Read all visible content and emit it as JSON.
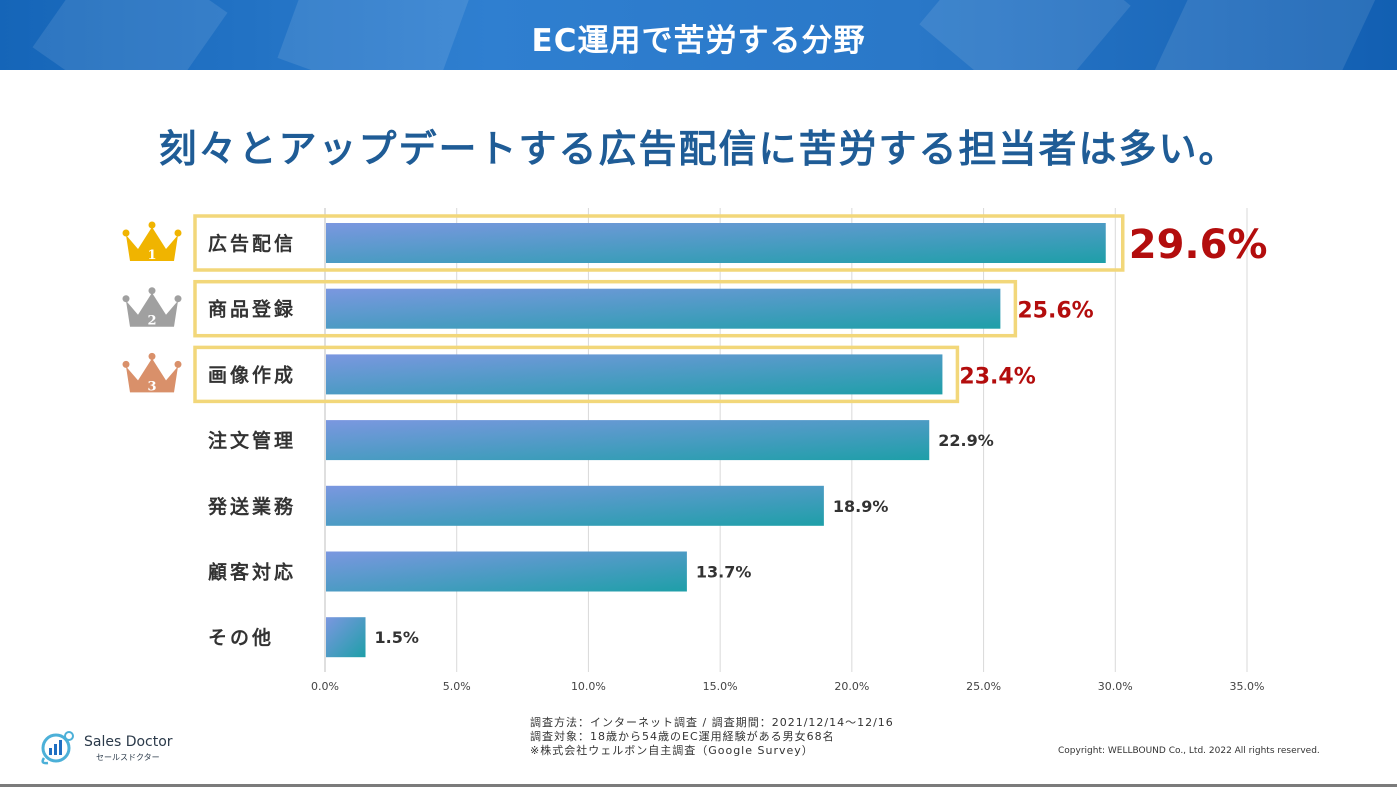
{
  "banner": {
    "title": "EC運用で苦労する分野"
  },
  "subtitle": "刻々とアップデートする広告配信に苦労する担当者は多い。",
  "colors": {
    "banner": "#1f6fc2",
    "subtitle": "#1f5c96",
    "bar_start": "#7b97e0",
    "bar_end": "#1e9fa8",
    "highlight_box": "#f2d77a",
    "top_value": "#b30d0d",
    "gold_crown": "#f0b400",
    "silver_crown": "#a0a0a0",
    "bronze_crown": "#d9906a"
  },
  "chart_data": {
    "type": "bar",
    "orientation": "horizontal",
    "categories": [
      "広告配信",
      "商品登録",
      "画像作成",
      "注文管理",
      "発送業務",
      "顧客対応",
      "その他"
    ],
    "values": [
      29.6,
      25.6,
      23.4,
      22.9,
      18.9,
      13.7,
      1.5
    ],
    "value_labels": [
      "29.6%",
      "25.6%",
      "23.4%",
      "22.9%",
      "18.9%",
      "13.7%",
      "1.5%"
    ],
    "xlim": [
      0,
      35
    ],
    "xticks": [
      0,
      5,
      10,
      15,
      20,
      25,
      30,
      35
    ],
    "xtick_labels": [
      "0.0%",
      "5.0%",
      "10.0%",
      "15.0%",
      "20.0%",
      "25.0%",
      "30.0%",
      "35.0%"
    ],
    "ranks": [
      {
        "rank": "1",
        "icon": "gold-crown-icon"
      },
      {
        "rank": "2",
        "icon": "silver-crown-icon"
      },
      {
        "rank": "3",
        "icon": "bronze-crown-icon"
      }
    ],
    "grid": true,
    "title": "刻々とアップデートする広告配信に苦労する担当者は多い。"
  },
  "footer": {
    "note_lines": [
      "調査方法：インターネット調査 / 調査期間：2021/12/14〜12/16",
      "調査対象：18歳から54歳のEC運用経験がある男女68名",
      "※株式会社ウェルボン自主調査（Google Survey）"
    ],
    "copyright": "Copyright: WELLBOUND Co., Ltd. 2022 All rights reserved.",
    "logo_name": "Sales Doctor",
    "logo_kana": "セールスドクター"
  }
}
